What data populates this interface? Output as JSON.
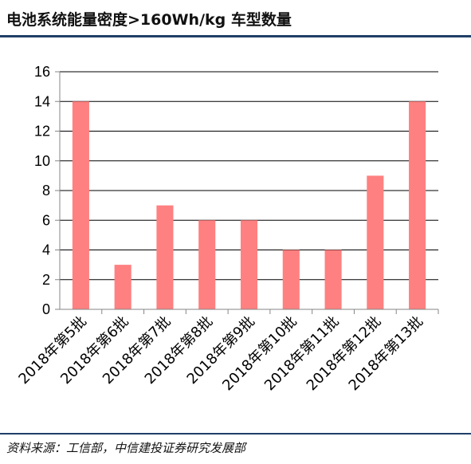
{
  "header": {
    "title": "电池系统能量密度>160Wh/kg 车型数量"
  },
  "footer": {
    "source": "资料来源：工信部，中信建投证券研究发展部"
  },
  "colors": {
    "bar": "#ff8080",
    "rule": "#1f3f66",
    "axis": "#868686",
    "grid": "#000000"
  },
  "chart_data": {
    "type": "bar",
    "title": "",
    "xlabel": "",
    "ylabel": "",
    "categories": [
      "2018年第5批",
      "2018年第6批",
      "2018年第7批",
      "2018年第8批",
      "2018年第9批",
      "2018年第10批",
      "2018年第11批",
      "2018年第12批",
      "2018年第13批"
    ],
    "values": [
      14,
      3,
      7,
      6,
      6,
      4,
      4,
      9,
      14
    ],
    "ylim": [
      0,
      16
    ],
    "yticks": [
      0,
      2,
      4,
      6,
      8,
      10,
      12,
      14,
      16
    ],
    "grid": true,
    "legend": "none"
  }
}
